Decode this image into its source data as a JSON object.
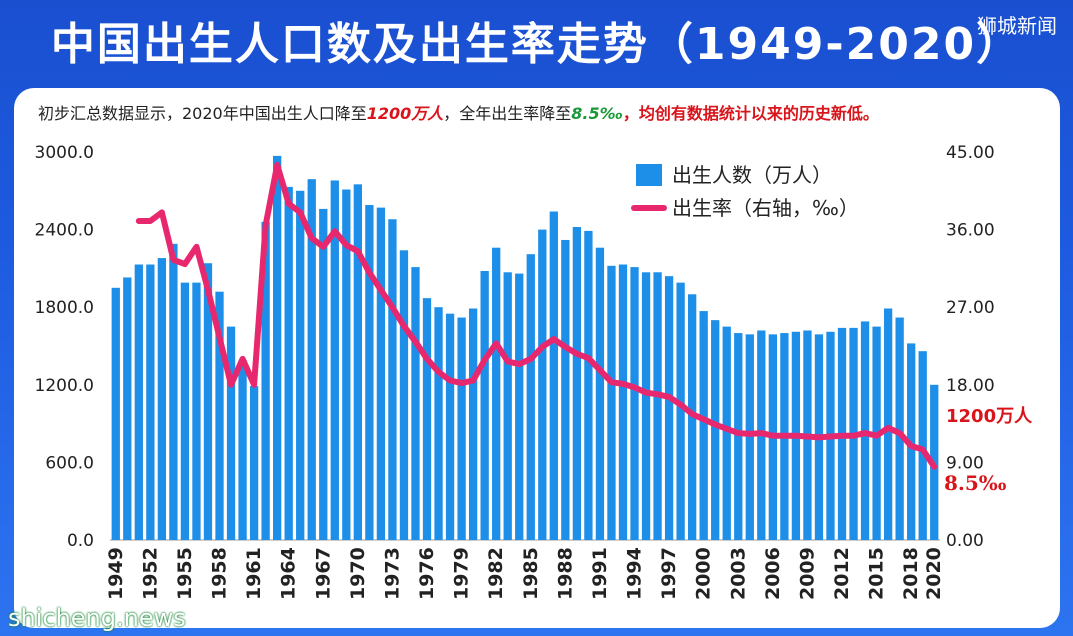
{
  "header": {
    "title": "中国出生人口数及出生率走势（1949-2020）",
    "brand": "狮城新闻"
  },
  "subtitle": {
    "p1": "初步汇总数据显示，2020年中国出生人口降至",
    "v1": "1200万人",
    "p2": "，全年出生率降至",
    "v2": "8.5‰",
    "p3": "，均创有数据统计以来的历史新低。"
  },
  "footer": {
    "brand": "shicheng.news"
  },
  "colors": {
    "bar": "#1e8fe8",
    "line": "#e8286e",
    "accent_red": "#d9141b",
    "accent_green": "#1a9a3a"
  },
  "chart_data": {
    "type": "bar",
    "title": "中国出生人口数及出生率走势（1949-2020）",
    "x": [
      1949,
      1950,
      1951,
      1952,
      1953,
      1954,
      1955,
      1956,
      1957,
      1958,
      1959,
      1960,
      1961,
      1962,
      1963,
      1964,
      1965,
      1966,
      1967,
      1968,
      1969,
      1970,
      1971,
      1972,
      1973,
      1974,
      1975,
      1976,
      1977,
      1978,
      1979,
      1980,
      1981,
      1982,
      1983,
      1984,
      1985,
      1986,
      1987,
      1988,
      1989,
      1990,
      1991,
      1992,
      1993,
      1994,
      1995,
      1996,
      1997,
      1998,
      1999,
      2000,
      2001,
      2002,
      2003,
      2004,
      2005,
      2006,
      2007,
      2008,
      2009,
      2010,
      2011,
      2012,
      2013,
      2014,
      2015,
      2016,
      2017,
      2018,
      2019,
      2020
    ],
    "tick_labels": [
      "1949",
      "1952",
      "1955",
      "1958",
      "1961",
      "1964",
      "1967",
      "1970",
      "1973",
      "1976",
      "1979",
      "1982",
      "1985",
      "1988",
      "1991",
      "1994",
      "1997",
      "2000",
      "2003",
      "2006",
      "2009",
      "2012",
      "2015",
      "2018",
      "2020"
    ],
    "series": [
      {
        "name": "出生人数（万人）",
        "axis": "left",
        "type": "bar",
        "values": [
          1950,
          2030,
          2130,
          2130,
          2180,
          2290,
          1990,
          1990,
          2140,
          1920,
          1650,
          1390,
          1190,
          2460,
          2970,
          2730,
          2700,
          2790,
          2560,
          2780,
          2710,
          2750,
          2590,
          2570,
          2480,
          2240,
          2110,
          1870,
          1800,
          1750,
          1720,
          1790,
          2080,
          2260,
          2070,
          2060,
          2210,
          2400,
          2540,
          2320,
          2420,
          2390,
          2260,
          2120,
          2130,
          2110,
          2070,
          2070,
          2040,
          1990,
          1900,
          1770,
          1700,
          1650,
          1600,
          1590,
          1620,
          1590,
          1600,
          1610,
          1620,
          1590,
          1610,
          1640,
          1640,
          1690,
          1650,
          1790,
          1720,
          1520,
          1460,
          1200
        ]
      },
      {
        "name": "出生率（右轴，‰）",
        "axis": "right",
        "type": "line",
        "values": [
          null,
          null,
          37.0,
          37.0,
          38.0,
          32.5,
          32.0,
          34.0,
          29.0,
          23.5,
          18.0,
          21.0,
          18.0,
          36.5,
          43.5,
          39.0,
          38.0,
          35.0,
          34.0,
          35.8,
          34.2,
          33.5,
          31.0,
          29.0,
          27.0,
          24.8,
          23.0,
          21.0,
          19.5,
          18.5,
          18.2,
          18.5,
          20.9,
          22.8,
          20.7,
          20.4,
          21.0,
          22.4,
          23.3,
          22.4,
          21.6,
          21.1,
          19.7,
          18.3,
          18.1,
          17.7,
          17.1,
          16.9,
          16.6,
          15.7,
          14.6,
          14.0,
          13.4,
          12.9,
          12.4,
          12.3,
          12.4,
          12.1,
          12.1,
          12.1,
          12.0,
          11.9,
          12.0,
          12.1,
          12.1,
          12.4,
          12.1,
          13.0,
          12.4,
          10.9,
          10.5,
          8.5
        ]
      }
    ],
    "ylim_left": [
      0,
      3000
    ],
    "ylim_right": [
      0,
      45
    ],
    "yticks_left": [
      "3000.0",
      "2400.0",
      "1800.0",
      "1200.0",
      "600.0",
      "0.0"
    ],
    "yticks_right": [
      "45.00",
      "36.00",
      "27.00",
      "18.00",
      "9.00",
      "0.00"
    ],
    "annotations": [
      {
        "text": "1200万人",
        "target": "bar-2020"
      },
      {
        "text": "8.5‰",
        "target": "line-2020"
      }
    ],
    "legend_position": "top-right",
    "grid": false
  }
}
